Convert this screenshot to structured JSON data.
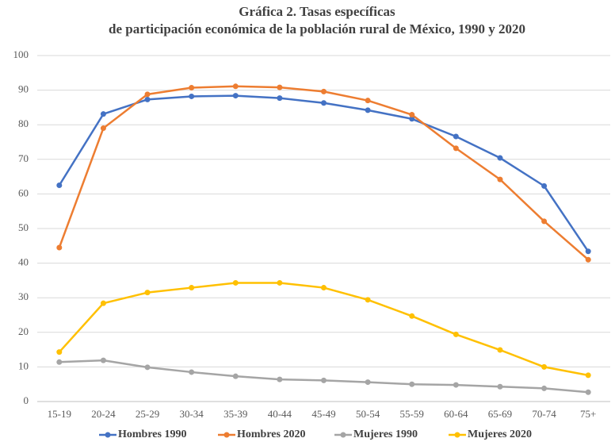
{
  "chart_data": {
    "type": "line",
    "title": "Gráfica 2. Tasas específicas",
    "subtitle": "de participación económica de la población rural de México, 1990 y 2020",
    "categories": [
      "15-19",
      "20-24",
      "25-29",
      "30-34",
      "35-39",
      "40-44",
      "45-49",
      "50-54",
      "55-59",
      "60-64",
      "65-69",
      "70-74",
      "75+"
    ],
    "series": [
      {
        "name": "Hombres 1990",
        "color": "#4472c4",
        "values": [
          62.5,
          83.1,
          87.3,
          88.2,
          88.4,
          87.7,
          86.3,
          84.2,
          81.7,
          76.6,
          70.4,
          62.3,
          43.4
        ]
      },
      {
        "name": "Hombres 2020",
        "color": "#ed7d31",
        "values": [
          44.5,
          79.0,
          88.8,
          90.7,
          91.1,
          90.8,
          89.6,
          87.0,
          82.9,
          73.2,
          64.2,
          52.1,
          41.0
        ]
      },
      {
        "name": "Mujeres 1990",
        "color": "#a5a5a5",
        "values": [
          11.4,
          11.9,
          9.9,
          8.5,
          7.3,
          6.4,
          6.1,
          5.6,
          5.0,
          4.8,
          4.3,
          3.8,
          2.7
        ]
      },
      {
        "name": "Mujeres 2020",
        "color": "#ffc000",
        "values": [
          14.3,
          28.4,
          31.5,
          32.9,
          34.3,
          34.3,
          32.9,
          29.4,
          24.7,
          19.4,
          14.9,
          10.0,
          7.6
        ]
      }
    ],
    "ylim": [
      0,
      100
    ],
    "yticks": [
      0,
      10,
      20,
      30,
      40,
      50,
      60,
      70,
      80,
      90,
      100
    ],
    "grid": true,
    "legend": "bottom"
  }
}
